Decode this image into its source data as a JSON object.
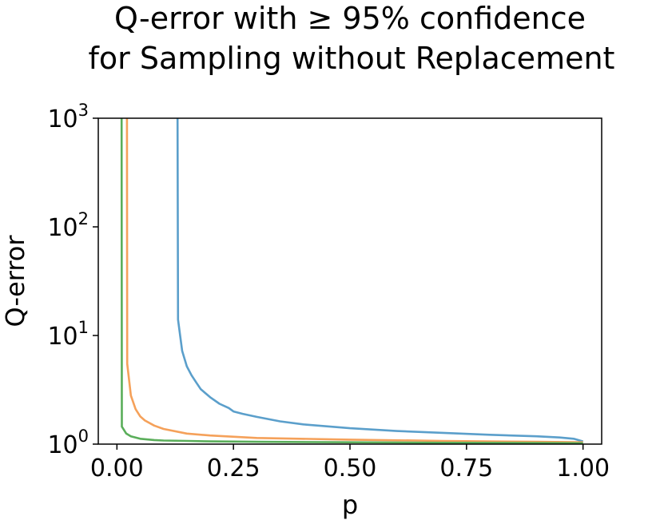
{
  "chart_data": {
    "type": "line",
    "title_line1": "Q-error with ≥ 95% confidence",
    "title_line2": "for Sampling without Replacement",
    "xlabel": "p",
    "ylabel": "Q-error",
    "xlim": [
      -0.04,
      1.04
    ],
    "ylim": [
      1,
      1000
    ],
    "yscale": "log",
    "grid": false,
    "x_ticks": [
      {
        "value": 0.0,
        "label": "0.00"
      },
      {
        "value": 0.25,
        "label": "0.25"
      },
      {
        "value": 0.5,
        "label": "0.50"
      },
      {
        "value": 0.75,
        "label": "0.75"
      },
      {
        "value": 1.0,
        "label": "1.00"
      }
    ],
    "y_ticks": [
      {
        "value": 1,
        "base": "10",
        "exp": "0"
      },
      {
        "value": 10,
        "base": "10",
        "exp": "1"
      },
      {
        "value": 100,
        "base": "10",
        "exp": "2"
      },
      {
        "value": 1000,
        "base": "10",
        "exp": "3"
      }
    ],
    "series": [
      {
        "color": "#5b9fcb",
        "x": [
          0.13,
          0.131,
          0.14,
          0.15,
          0.16,
          0.17,
          0.18,
          0.2,
          0.22,
          0.24,
          0.25,
          0.27,
          0.3,
          0.35,
          0.4,
          0.5,
          0.6,
          0.7,
          0.8,
          0.9,
          0.95,
          0.98,
          1.0
        ],
        "y": [
          1000,
          14,
          7.2,
          5.2,
          4.3,
          3.7,
          3.2,
          2.7,
          2.35,
          2.15,
          2.0,
          1.9,
          1.78,
          1.62,
          1.52,
          1.4,
          1.32,
          1.27,
          1.22,
          1.18,
          1.15,
          1.12,
          1.06
        ]
      },
      {
        "color": "#f5a15a",
        "x": [
          0.0215,
          0.022,
          0.03,
          0.04,
          0.05,
          0.06,
          0.08,
          0.1,
          0.15,
          0.2,
          0.3,
          0.5,
          0.7,
          0.9,
          1.0
        ],
        "y": [
          1000,
          5.5,
          2.8,
          2.1,
          1.8,
          1.65,
          1.48,
          1.38,
          1.25,
          1.2,
          1.14,
          1.1,
          1.07,
          1.05,
          1.04
        ]
      },
      {
        "color": "#5aae5a",
        "x": [
          0.01,
          0.0105,
          0.02,
          0.03,
          0.05,
          0.08,
          0.1,
          0.15,
          0.2,
          0.3,
          0.5,
          0.7,
          0.9,
          1.0
        ],
        "y": [
          1000,
          1.45,
          1.25,
          1.18,
          1.12,
          1.09,
          1.08,
          1.07,
          1.06,
          1.05,
          1.04,
          1.03,
          1.025,
          1.02
        ]
      }
    ]
  }
}
